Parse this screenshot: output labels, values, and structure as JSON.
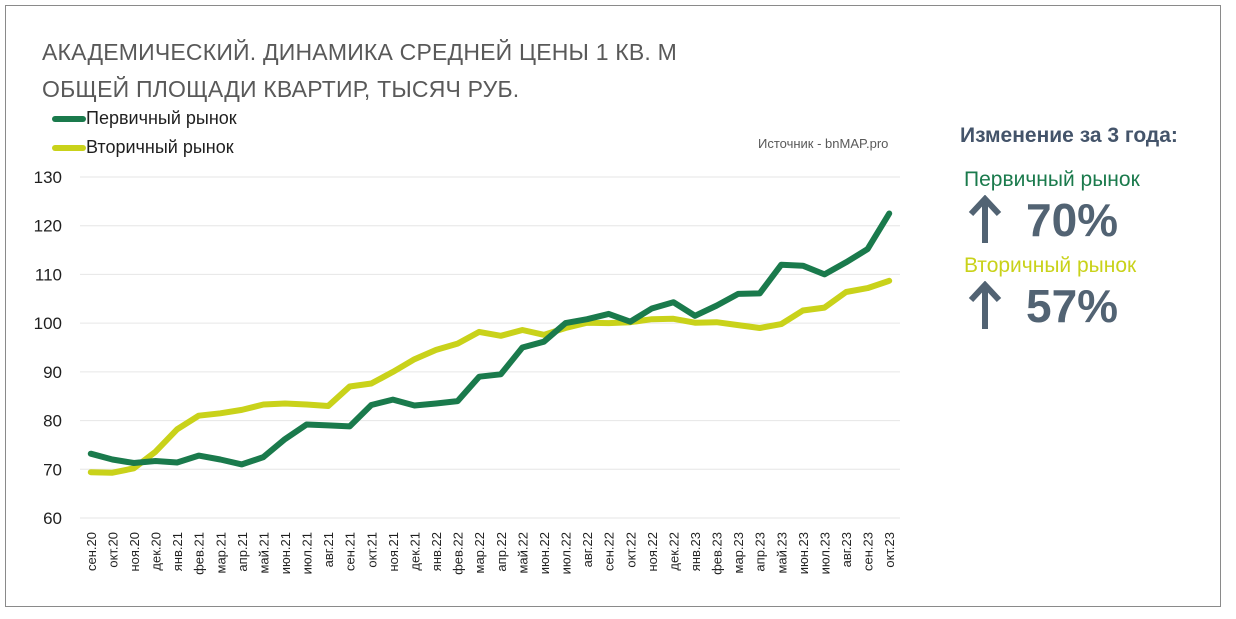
{
  "title_lines": [
    "АКАДЕМИЧЕСКИЙ. ДИНАМИКА СРЕДНЕЙ ЦЕНЫ 1 КВ. М",
    "ОБЩЕЙ ПЛОЩАДИ КВАРТИР,  ТЫСЯЧ РУБ."
  ],
  "source": "Источник - bnMAP.pro",
  "colors": {
    "primary": "#1a7a4c",
    "secondary": "#c9d21a",
    "panel_text": "#44546a"
  },
  "panel": {
    "title": "Изменение за 3 года:",
    "items": [
      {
        "label": "Первичный рынок",
        "value": "70%",
        "color": "#1a7a4c",
        "icon": "arrow-up-icon"
      },
      {
        "label": "Вторичный рынок",
        "value": "57%",
        "color": "#c9d21a",
        "icon": "arrow-up-icon"
      }
    ]
  },
  "chart_data": {
    "type": "line",
    "title": "АКАДЕМИЧЕСКИЙ. ДИНАМИКА СРЕДНЕЙ ЦЕНЫ 1 КВ. М ОБЩЕЙ ПЛОЩАДИ КВАРТИР,  ТЫСЯЧ РУБ.",
    "xlabel": "",
    "ylabel": "",
    "ylim": [
      60,
      130
    ],
    "yticks": [
      60,
      70,
      80,
      90,
      100,
      110,
      120,
      130
    ],
    "grid": true,
    "legend_position": "top-left",
    "categories": [
      "сен.20",
      "окт.20",
      "ноя.20",
      "дек.20",
      "янв.21",
      "фев.21",
      "мар.21",
      "апр.21",
      "май.21",
      "июн.21",
      "июл.21",
      "авг.21",
      "сен.21",
      "окт.21",
      "ноя.21",
      "дек.21",
      "янв.22",
      "фев.22",
      "мар.22",
      "апр.22",
      "май.22",
      "июн.22",
      "июл.22",
      "авг.22",
      "сен.22",
      "окт.22",
      "ноя.22",
      "дек.22",
      "янв.23",
      "фев.23",
      "мар.23",
      "апр.23",
      "май.23",
      "июн.23",
      "июл.23",
      "авг.23",
      "сен.23",
      "окт.23"
    ],
    "series": [
      {
        "name": "Первичный рынок",
        "color": "#1a7a4c",
        "values": [
          73.2,
          72.0,
          71.3,
          71.7,
          71.4,
          72.8,
          72.0,
          71.0,
          72.5,
          76.2,
          79.2,
          79.0,
          78.8,
          83.2,
          84.3,
          83.1,
          83.5,
          84.0,
          89.0,
          89.5,
          95.0,
          96.2,
          100.0,
          100.8,
          101.9,
          100.3,
          103.0,
          104.3,
          101.5,
          103.6,
          106.0,
          106.1,
          112.0,
          111.8,
          110.0,
          112.5,
          115.2,
          122.5
        ]
      },
      {
        "name": "Вторичный рынок",
        "color": "#c9d21a",
        "values": [
          69.4,
          69.3,
          70.2,
          73.6,
          78.2,
          81.0,
          81.5,
          82.2,
          83.3,
          83.5,
          83.3,
          83.0,
          87.0,
          87.6,
          90.0,
          92.6,
          94.5,
          95.8,
          98.2,
          97.4,
          98.6,
          97.6,
          99.0,
          100.1,
          100.0,
          100.2,
          100.8,
          100.9,
          100.1,
          100.2,
          99.6,
          99.0,
          99.8,
          102.6,
          103.2,
          106.4,
          107.2,
          108.7
        ]
      }
    ]
  }
}
